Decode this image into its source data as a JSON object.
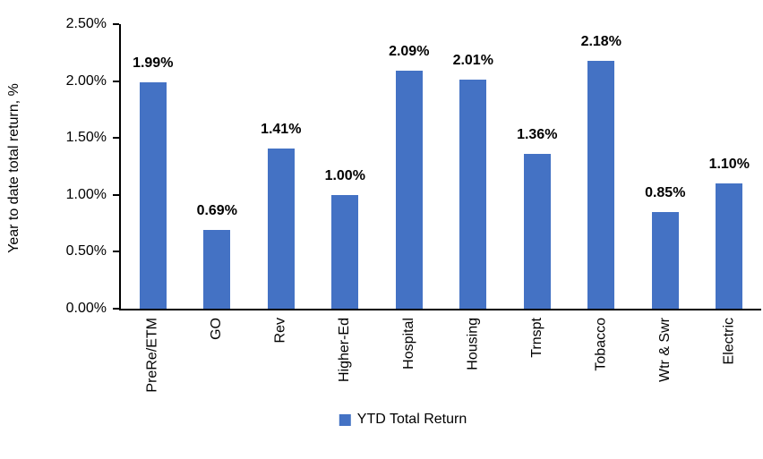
{
  "chart_data": {
    "type": "bar",
    "title": "",
    "categories": [
      "PreRe/ETM",
      "GO",
      "Rev",
      "Higher-Ed",
      "Hospital",
      "Housing",
      "Trnspt",
      "Tobacco",
      "Wtr & Swr",
      "Electric"
    ],
    "values": [
      1.99,
      0.69,
      1.41,
      1.0,
      2.09,
      2.01,
      1.36,
      2.18,
      0.85,
      1.1
    ],
    "value_labels": [
      "1.99%",
      "0.69%",
      "1.41%",
      "1.00%",
      "2.09%",
      "2.01%",
      "1.36%",
      "2.18%",
      "0.85%",
      "1.10%"
    ],
    "xlabel": "",
    "ylabel": "Year to date total return, %",
    "ylim": [
      0,
      2.5
    ],
    "yticks": [
      0,
      0.5,
      1.0,
      1.5,
      2.0,
      2.5
    ],
    "ytick_labels": [
      "0.00%",
      "0.50%",
      "1.00%",
      "1.50%",
      "2.00%",
      "2.50%"
    ],
    "grid": false,
    "legend": "YTD Total Return",
    "legend_position": "bottom-center",
    "bar_color": "#4472C4",
    "axis_color": "#000000",
    "label_color": "#000000"
  }
}
